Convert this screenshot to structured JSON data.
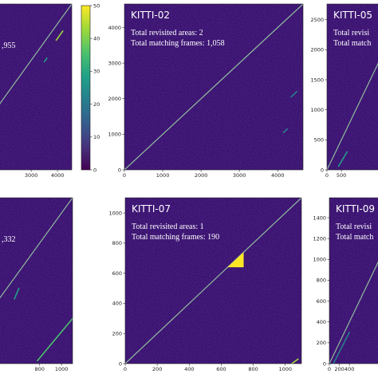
{
  "colors": {
    "background": "#3b0f70",
    "cmap": [
      "#440154",
      "#46327e",
      "#365c8d",
      "#277f8e",
      "#1fa187",
      "#4ac16d",
      "#a0da39",
      "#fde725"
    ]
  },
  "colorbar": {
    "min": 0,
    "max": 50,
    "ticks": [
      "0",
      "10",
      "20",
      "30",
      "40",
      "50"
    ]
  },
  "chart_data": [
    {
      "type": "heatmap",
      "title": "",
      "annotations": [
        ",955"
      ],
      "size": 4541,
      "x_ticks": [
        "3000",
        "4000"
      ],
      "y_ticks": [],
      "revisits": [
        {
          "start": [
            3500,
            2960
          ],
          "end": [
            3600,
            3060
          ],
          "intensity": 30
        },
        {
          "start": [
            3950,
            3550
          ],
          "end": [
            4200,
            3800
          ],
          "intensity": 45
        }
      ]
    },
    {
      "type": "heatmap",
      "title": "KITTI-02",
      "annotations": [
        "Total revisited areas: 2",
        "Total matching frames: 1,058"
      ],
      "size": 4661,
      "x_ticks": [
        "0",
        "1000",
        "2000",
        "3000",
        "4000"
      ],
      "y_ticks": [
        "0",
        "1000",
        "2000",
        "3000",
        "4000"
      ],
      "revisits": [
        {
          "start": [
            4350,
            2050
          ],
          "end": [
            4500,
            2200
          ],
          "intensity": 20
        },
        {
          "start": [
            4150,
            1050
          ],
          "end": [
            4250,
            1150
          ],
          "intensity": 18
        }
      ]
    },
    {
      "type": "heatmap",
      "title": "KITTI-05",
      "annotations": [
        "Total revisi",
        "Total match"
      ],
      "size": 2761,
      "x_ticks": [
        "0",
        "500"
      ],
      "y_ticks": [
        "0",
        "500",
        "1000",
        "1500",
        "2000",
        "2500"
      ],
      "revisits": [
        {
          "start": [
            400,
            60
          ],
          "end": [
            700,
            300
          ],
          "intensity": 25
        }
      ]
    },
    {
      "type": "heatmap",
      "title": "",
      "annotations": [
        ",332"
      ],
      "size": 1101,
      "x_ticks": [
        "800",
        "1000"
      ],
      "y_ticks": [],
      "revisits": [
        {
          "start": [
            780,
            20
          ],
          "end": [
            1101,
            300
          ],
          "intensity": 38
        },
        {
          "start": [
            570,
            430
          ],
          "end": [
            610,
            500
          ],
          "intensity": 30
        }
      ]
    },
    {
      "type": "heatmap",
      "title": "KITTI-07",
      "annotations": [
        "Total revisited areas: 1",
        "Total matching frames: 190"
      ],
      "size": 1101,
      "x_ticks": [
        "0",
        "200",
        "400",
        "600",
        "800",
        "1000"
      ],
      "y_ticks": [
        "0",
        "200",
        "400",
        "600",
        "800",
        "1000"
      ],
      "revisits": [
        {
          "start": [
            640,
            640
          ],
          "end": [
            740,
            740
          ],
          "intensity": 50,
          "filled": true
        },
        {
          "start": [
            1040,
            0
          ],
          "end": [
            1080,
            30
          ],
          "intensity": 40
        }
      ]
    },
    {
      "type": "heatmap",
      "title": "KITTI-09",
      "annotations": [
        "Total revisi",
        "Total match"
      ],
      "size": 1591,
      "x_ticks": [
        "0",
        "200",
        "400"
      ],
      "y_ticks": [
        "0",
        "200",
        "400",
        "600",
        "800",
        "1000",
        "1200",
        "1400"
      ],
      "revisits": [
        {
          "start": [
            80,
            0
          ],
          "end": [
            400,
            300
          ],
          "intensity": 18
        }
      ]
    }
  ]
}
